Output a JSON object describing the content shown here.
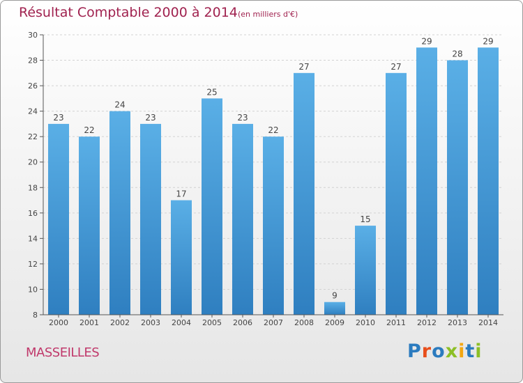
{
  "header": {
    "title": "Résultat Comptable 2000 à 2014",
    "unit": "(en milliers d'€)"
  },
  "footer": {
    "city": "MASSEILLES",
    "logo_letters": [
      "P",
      "r",
      "o",
      "x",
      "i",
      "t",
      "i"
    ],
    "logo_colors": [
      "#2b7bbf",
      "#e84e1b",
      "#2b7bbf",
      "#8cbf26",
      "#f3a712",
      "#2b7bbf",
      "#8cbf26"
    ]
  },
  "chart_data": {
    "type": "bar",
    "title": "Résultat Comptable 2000 à 2014",
    "categories": [
      "2000",
      "2001",
      "2002",
      "2003",
      "2004",
      "2005",
      "2006",
      "2007",
      "2008",
      "2009",
      "2010",
      "2011",
      "2012",
      "2013",
      "2014"
    ],
    "values": [
      23,
      22,
      24,
      23,
      17,
      25,
      23,
      22,
      27,
      9,
      15,
      27,
      29,
      28,
      29
    ],
    "ylim": [
      8,
      30
    ],
    "yticks": [
      8,
      10,
      12,
      14,
      16,
      18,
      20,
      22,
      24,
      26,
      28,
      30
    ],
    "grid": true,
    "bar_color": "#4ba3df"
  }
}
